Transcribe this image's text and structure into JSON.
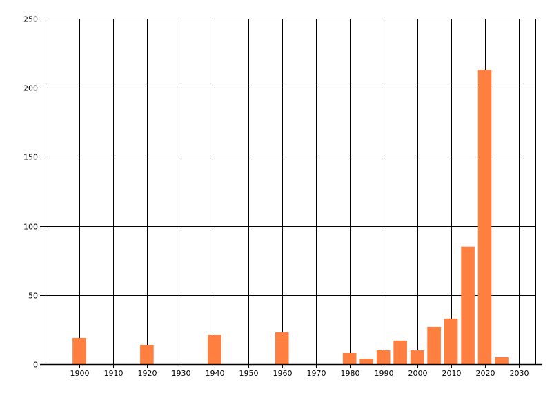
{
  "chart_data": {
    "type": "bar",
    "title": "",
    "xlabel": "",
    "ylabel": "",
    "xlim": [
      1890,
      2035
    ],
    "ylim": [
      0,
      250
    ],
    "x_ticks": [
      1900,
      1910,
      1920,
      1930,
      1940,
      1950,
      1960,
      1970,
      1980,
      1990,
      2000,
      2010,
      2020,
      2030
    ],
    "y_ticks": [
      0,
      50,
      100,
      150,
      200,
      250
    ],
    "grid": true,
    "bar_color": "#FF7F40",
    "x": [
      1900,
      1920,
      1940,
      1960,
      1980,
      1985,
      1990,
      1995,
      2000,
      2005,
      2010,
      2015,
      2020,
      2025
    ],
    "values": [
      19,
      14,
      21,
      23,
      8,
      4,
      10,
      17,
      10,
      27,
      33,
      85,
      213,
      5
    ]
  }
}
